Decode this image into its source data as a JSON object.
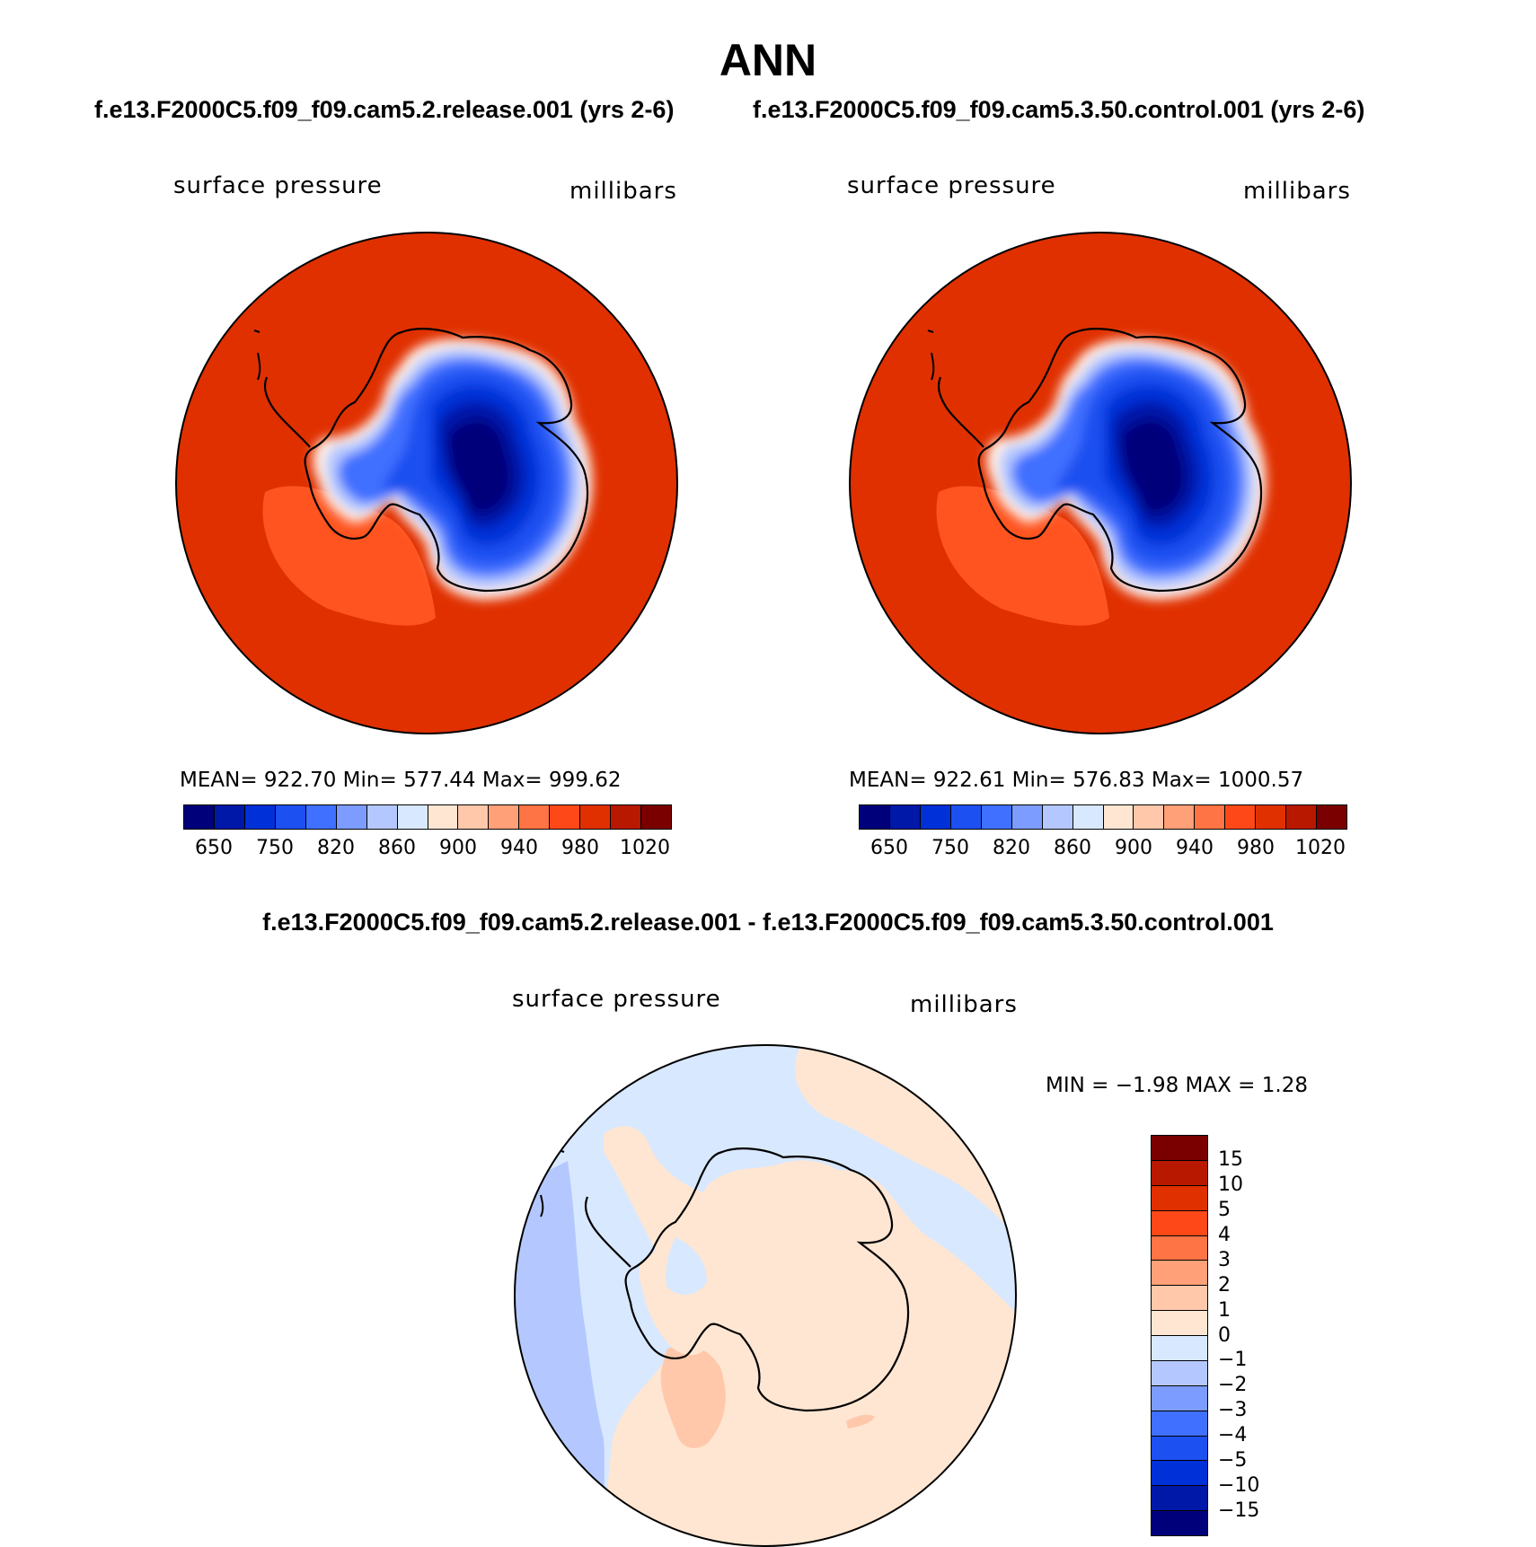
{
  "figure": {
    "title": "ANN",
    "panel_titles": [
      "f.e13.F2000C5.f09_f09.cam5.2.release.001 (yrs 2-6)",
      "f.e13.F2000C5.f09_f09.cam5.3.50.control.001 (yrs 2-6)"
    ],
    "diff_title": "f.e13.F2000C5.f09_f09.cam5.2.release.001 - f.e13.F2000C5.f09_f09.cam5.3.50.control.001"
  },
  "panels": [
    {
      "variable": "surface pressure",
      "units": "millibars",
      "stats": "MEAN= 922.70   Min= 577.44   Max= 999.62"
    },
    {
      "variable": "surface pressure",
      "units": "millibars",
      "stats": "MEAN= 922.61   Min= 576.83   Max= 1000.57"
    }
  ],
  "diff_panel": {
    "variable": "surface pressure",
    "units": "millibars",
    "stats": "MIN =   −1.98 MAX =     1.28"
  },
  "colorbar_main": {
    "colors": [
      "#00007a",
      "#0018a8",
      "#0030d8",
      "#1c50f0",
      "#4070ff",
      "#7c9cff",
      "#b4c8ff",
      "#d8e8ff",
      "#ffe6d2",
      "#ffc8aa",
      "#ffa078",
      "#ff7444",
      "#ff4818",
      "#e03000",
      "#b81800",
      "#7a0000"
    ],
    "labels": [
      "650",
      "750",
      "820",
      "860",
      "900",
      "940",
      "980",
      "1020"
    ]
  },
  "colorbar_diff": {
    "colors": [
      "#7a0000",
      "#b81800",
      "#e03000",
      "#ff4818",
      "#ff7444",
      "#ffa078",
      "#ffc8aa",
      "#ffe6d2",
      "#d8e8ff",
      "#b4c8ff",
      "#7c9cff",
      "#4070ff",
      "#1c50f0",
      "#0030d8",
      "#0018a8",
      "#00007a"
    ],
    "labels": [
      "15",
      "10",
      "5",
      "4",
      "3",
      "2",
      "1",
      "0",
      "−1",
      "−2",
      "−3",
      "−4",
      "−5",
      "−10",
      "−15"
    ]
  }
}
